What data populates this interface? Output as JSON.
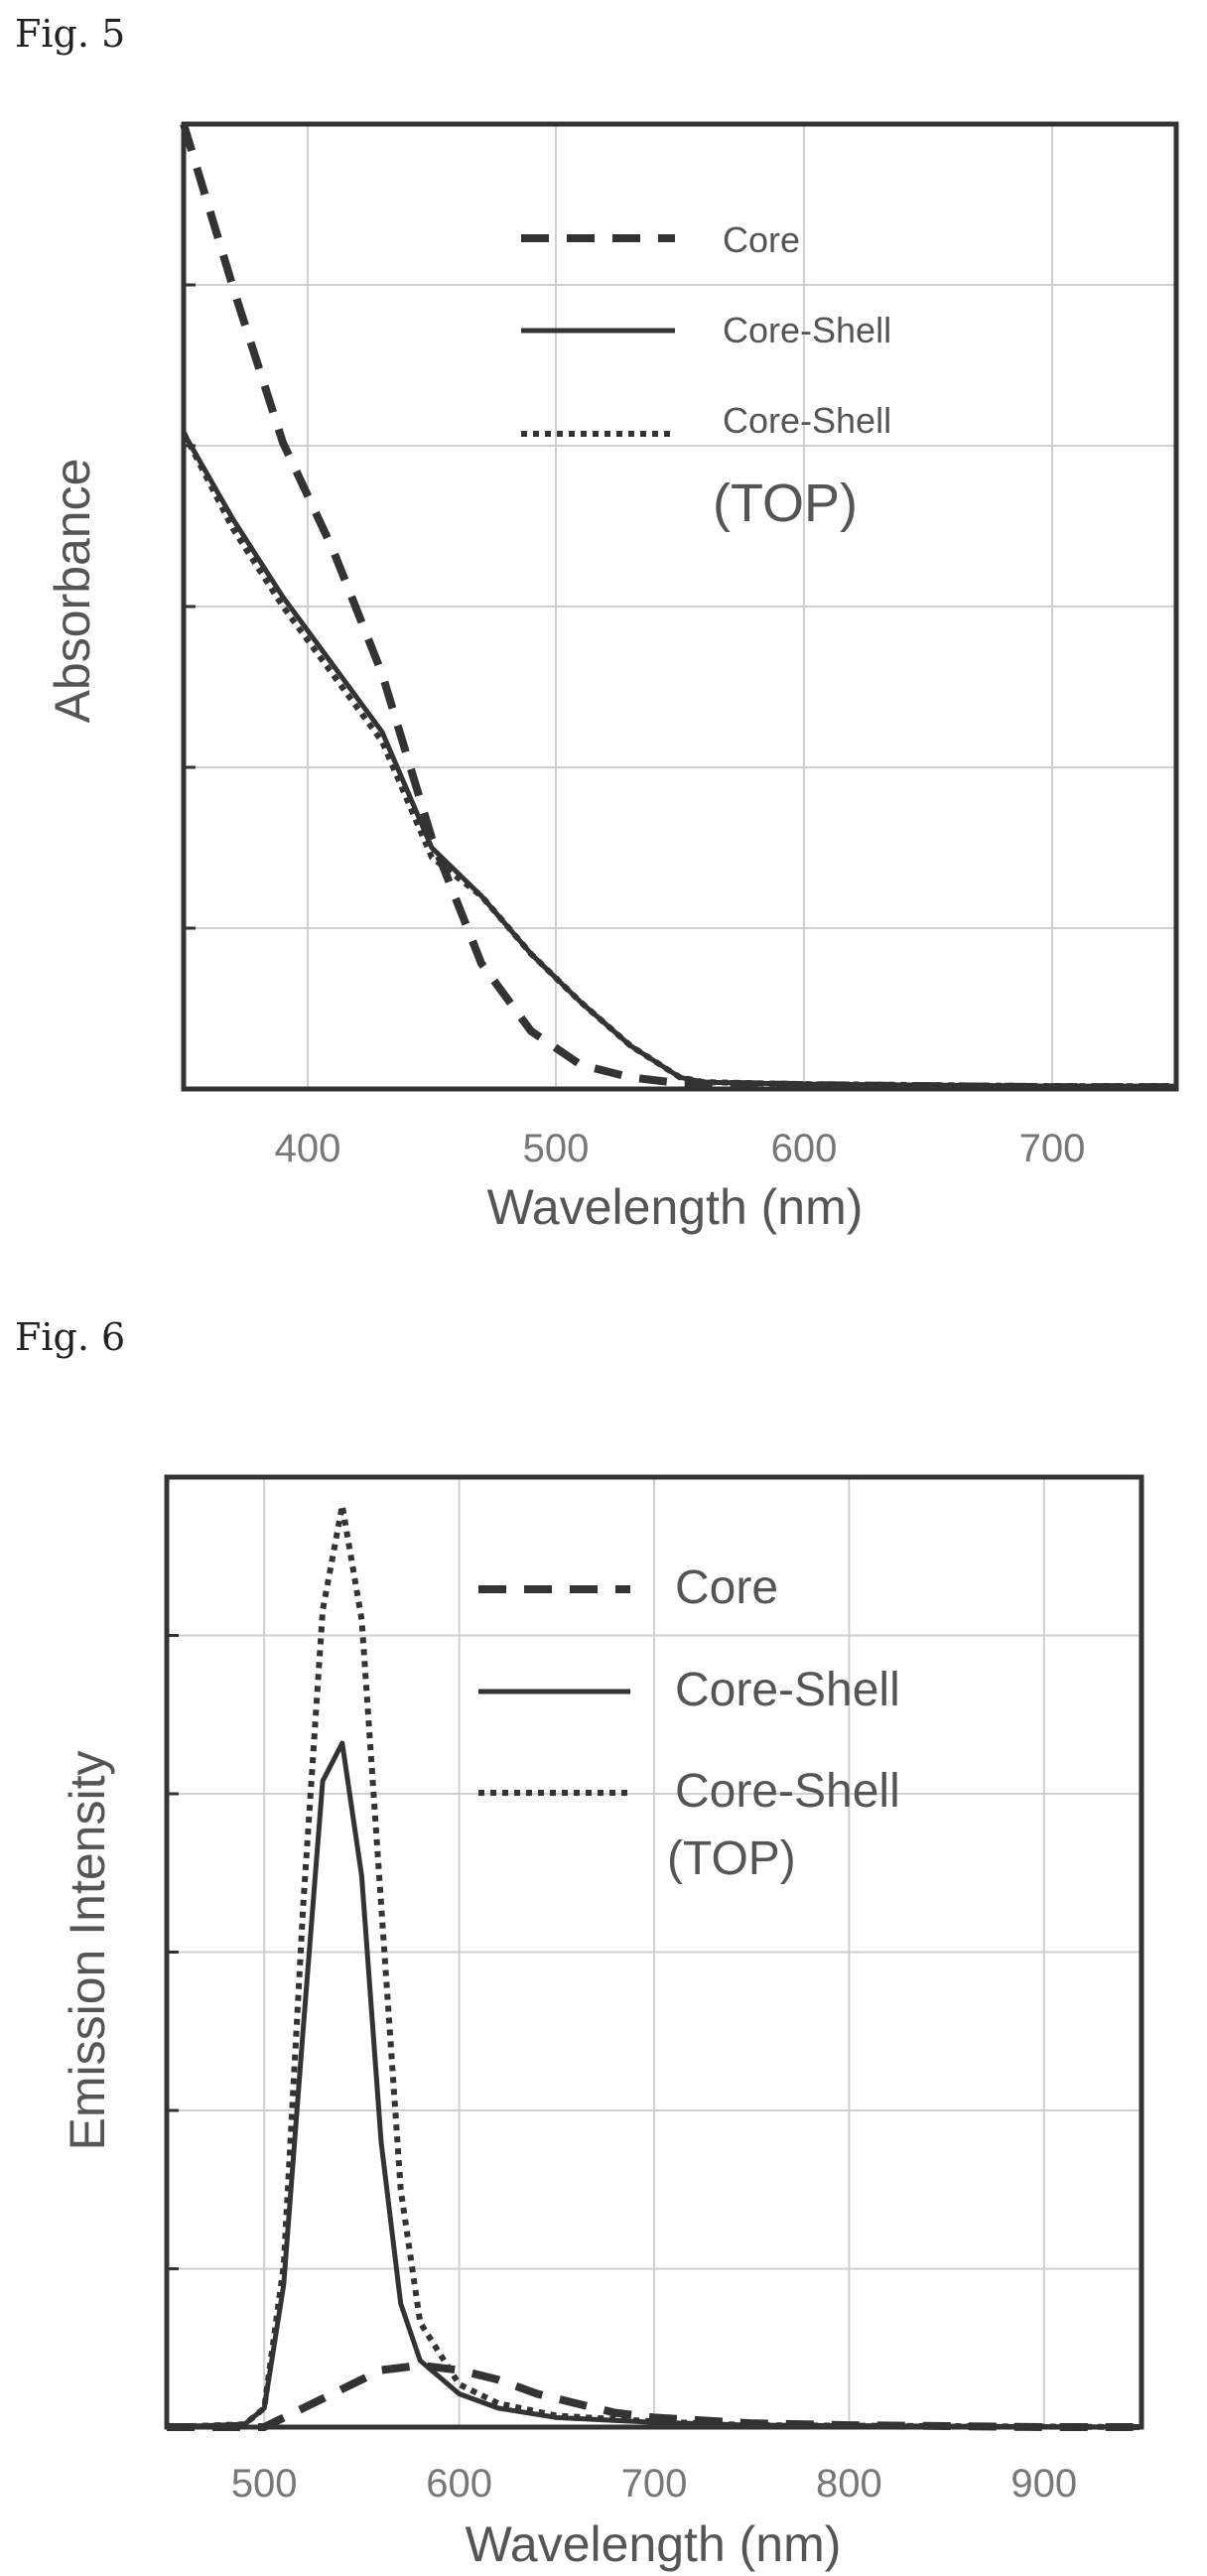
{
  "figures": {
    "fig5_label": "Fig. 5",
    "fig6_label": "Fig. 6"
  },
  "chart_data": [
    {
      "type": "line",
      "xlabel": "Wavelength (nm)",
      "ylabel": "Absorbance",
      "xlim": [
        350,
        750
      ],
      "ylim": [
        0,
        1.0
      ],
      "xticks": [
        400,
        500,
        600,
        700
      ],
      "grid": true,
      "legend_position": "top-right",
      "series": [
        {
          "name": "Core",
          "style": "dashed",
          "x": [
            350,
            370,
            390,
            410,
            430,
            450,
            470,
            490,
            510,
            530,
            550,
            600,
            650,
            700,
            750
          ],
          "y": [
            1.0,
            0.83,
            0.67,
            0.56,
            0.43,
            0.26,
            0.13,
            0.06,
            0.025,
            0.012,
            0.006,
            0.004,
            0.003,
            0.002,
            0.002
          ]
        },
        {
          "name": "Core-Shell",
          "style": "solid",
          "x": [
            350,
            370,
            390,
            410,
            430,
            450,
            470,
            490,
            510,
            530,
            550,
            560,
            600,
            650,
            700,
            750
          ],
          "y": [
            0.68,
            0.59,
            0.51,
            0.44,
            0.37,
            0.25,
            0.2,
            0.14,
            0.09,
            0.045,
            0.012,
            0.007,
            0.005,
            0.004,
            0.003,
            0.003
          ]
        },
        {
          "name": "Core-Shell (TOP)",
          "style": "dotted",
          "x": [
            350,
            370,
            390,
            410,
            430,
            450,
            470,
            490,
            510,
            530,
            550,
            560,
            600,
            650,
            700,
            750
          ],
          "y": [
            0.68,
            0.58,
            0.5,
            0.43,
            0.36,
            0.24,
            0.2,
            0.14,
            0.09,
            0.045,
            0.012,
            0.007,
            0.005,
            0.004,
            0.003,
            0.003
          ]
        }
      ]
    },
    {
      "type": "line",
      "xlabel": "Wavelength (nm)",
      "ylabel": "Emission Intensity",
      "xlim": [
        450,
        950
      ],
      "ylim": [
        0,
        1.0
      ],
      "xticks": [
        500,
        600,
        700,
        800,
        900
      ],
      "grid": true,
      "legend_position": "top-right",
      "series": [
        {
          "name": "Core",
          "style": "dashed",
          "x": [
            450,
            500,
            520,
            540,
            560,
            580,
            600,
            620,
            640,
            660,
            680,
            700,
            750,
            800,
            850,
            900,
            950
          ],
          "y": [
            0.0,
            0.0,
            0.02,
            0.04,
            0.06,
            0.065,
            0.06,
            0.05,
            0.035,
            0.025,
            0.015,
            0.01,
            0.004,
            0.002,
            0.001,
            0.0,
            0.0
          ]
        },
        {
          "name": "Core-Shell",
          "style": "solid",
          "x": [
            450,
            490,
            500,
            510,
            520,
            530,
            540,
            550,
            560,
            570,
            580,
            600,
            620,
            650,
            700,
            750,
            950
          ],
          "y": [
            0.0,
            0.003,
            0.02,
            0.15,
            0.42,
            0.68,
            0.72,
            0.58,
            0.3,
            0.13,
            0.07,
            0.035,
            0.02,
            0.01,
            0.005,
            0.002,
            0.0
          ]
        },
        {
          "name": "Core-Shell (TOP)",
          "style": "dotted",
          "x": [
            450,
            490,
            500,
            510,
            520,
            530,
            540,
            550,
            560,
            570,
            580,
            600,
            620,
            650,
            700,
            750,
            950
          ],
          "y": [
            0.0,
            0.003,
            0.02,
            0.17,
            0.55,
            0.86,
            0.97,
            0.85,
            0.55,
            0.25,
            0.11,
            0.045,
            0.025,
            0.012,
            0.006,
            0.002,
            0.0
          ]
        }
      ]
    }
  ],
  "legend_top_label": "(TOP)"
}
